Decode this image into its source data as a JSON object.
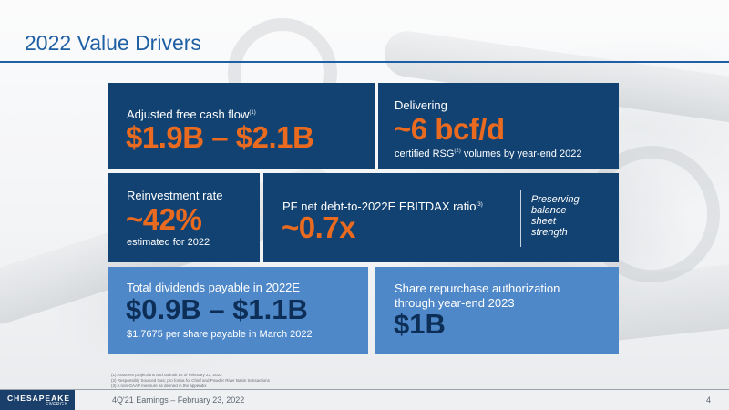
{
  "slide": {
    "title": "2022 Value Drivers",
    "footer_text": "4Q'21 Earnings – February 23, 2022",
    "page_number": "4",
    "logo_text": "CHESAPEAKE",
    "logo_subtext": "ENERGY"
  },
  "cards": {
    "fcf": {
      "label": "Adjusted free cash flow",
      "label_note": "(1)",
      "value": "$1.9B – $2.1B"
    },
    "delivering": {
      "label": "Delivering",
      "value": "~6 bcf/d",
      "sub_pre": "certified RSG",
      "sub_note": "(2)",
      "sub_post": " volumes by year-end 2022"
    },
    "reinvestment": {
      "label": "Reinvestment rate",
      "value": "~42%",
      "sub": "estimated for 2022"
    },
    "debt": {
      "label": "PF net debt-to-2022E EBITDAX ratio",
      "label_note": "(3)",
      "value": "~0.7x",
      "side_line1": "Preserving",
      "side_line2": "balance",
      "side_line3": "sheet",
      "side_line4": "strength"
    },
    "dividends": {
      "label": "Total dividends payable in 2022E",
      "value": "$0.9B – $1.1B",
      "sub": "$1.7675 per share payable in March 2022"
    },
    "repurchase": {
      "label_line1": "Share repurchase authorization",
      "label_line2": "through year-end 2023",
      "value": "$1B"
    }
  },
  "footnotes": [
    "(1)  Assumes projections and outlook as of February 23, 2022",
    "(2)  Responsibly Sourced Gas; pro forma for Chief and Powder River Basin transactions",
    "(3)  A non-GAAP measure as defined in the appendix"
  ],
  "colors": {
    "title_blue": "#1f5fa3",
    "navy_card": "#124272",
    "light_card": "#4f88c9",
    "accent_orange": "#ea6b1f",
    "dark_navy_text": "#0d2f57"
  }
}
